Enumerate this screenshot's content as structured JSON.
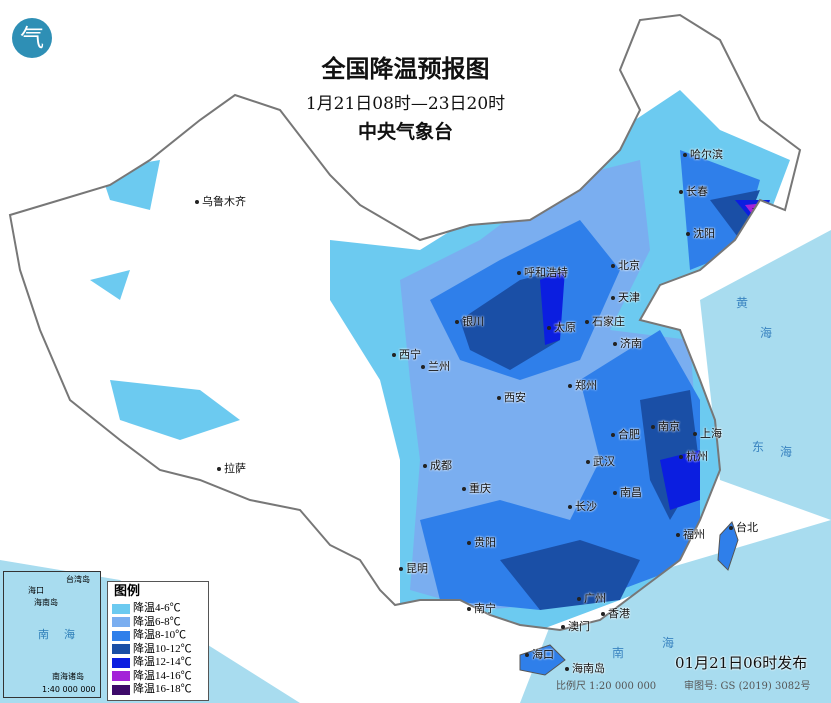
{
  "title": "全国降温预报图",
  "period": "1月21日08时—23日20时",
  "issuer": "中央气象台",
  "logo_text": "气",
  "legend": {
    "title": "图例",
    "items": [
      {
        "label": "降温4-6℃",
        "color": "#6ccaf0"
      },
      {
        "label": "降温6-8℃",
        "color": "#7aaef0"
      },
      {
        "label": "降温8-10℃",
        "color": "#2f7fea"
      },
      {
        "label": "降温10-12℃",
        "color": "#1a4fa6"
      },
      {
        "label": "降温12-14℃",
        "color": "#0b1ee0"
      },
      {
        "label": "降温14-16℃",
        "color": "#a322d8"
      },
      {
        "label": "降温16-18℃",
        "color": "#3d0a6a"
      }
    ]
  },
  "cities": [
    {
      "name": "哈尔滨"
    },
    {
      "name": "长春"
    },
    {
      "name": "沈阳"
    },
    {
      "name": "乌鲁木齐"
    },
    {
      "name": "呼和浩特"
    },
    {
      "name": "北京"
    },
    {
      "name": "天津"
    },
    {
      "name": "石家庄"
    },
    {
      "name": "太原"
    },
    {
      "name": "银川"
    },
    {
      "name": "济南"
    },
    {
      "name": "西宁"
    },
    {
      "name": "兰州"
    },
    {
      "name": "郑州"
    },
    {
      "name": "西安"
    },
    {
      "name": "南京"
    },
    {
      "name": "合肥"
    },
    {
      "name": "上海"
    },
    {
      "name": "杭州"
    },
    {
      "name": "武汉"
    },
    {
      "name": "成都"
    },
    {
      "name": "拉萨"
    },
    {
      "name": "重庆"
    },
    {
      "name": "南昌"
    },
    {
      "name": "长沙"
    },
    {
      "name": "贵阳"
    },
    {
      "name": "福州"
    },
    {
      "name": "台北"
    },
    {
      "name": "昆明"
    },
    {
      "name": "南宁"
    },
    {
      "name": "广州"
    },
    {
      "name": "香港"
    },
    {
      "name": "澳门"
    },
    {
      "name": "海口"
    },
    {
      "name": "海南岛"
    }
  ],
  "seas": [
    "黄",
    "海",
    "东",
    "海",
    "南",
    "海"
  ],
  "inset": {
    "labels": [
      "台湾岛",
      "海口",
      "海南岛",
      "南",
      "海",
      "南海诸岛"
    ],
    "scale": "1:40 000 000"
  },
  "issued": "01月21日06时发布",
  "scale": "比例尺 1:20 000 000",
  "review_no": "审图号: GS (2019) 3082号"
}
